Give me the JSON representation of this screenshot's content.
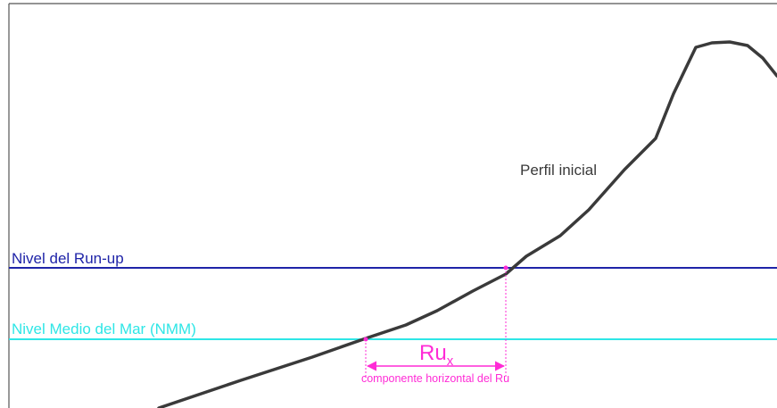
{
  "labels": {
    "profile": "Perfil inicial",
    "runup_level": "Nivel del Run-up",
    "mean_sea_level": "Nivel Medio del Mar (NMM)",
    "rux_main": "Ru",
    "rux_sub": "x",
    "rux_caption": "componente horizontal del Ru"
  },
  "colors": {
    "frame": "#555555",
    "profile": "#3a3a3a",
    "runup_level": "#1f24a8",
    "mean_sea_level": "#2ee6e6",
    "rux": "#ff2bd6",
    "profile_label": "#3a3a3a"
  }
}
